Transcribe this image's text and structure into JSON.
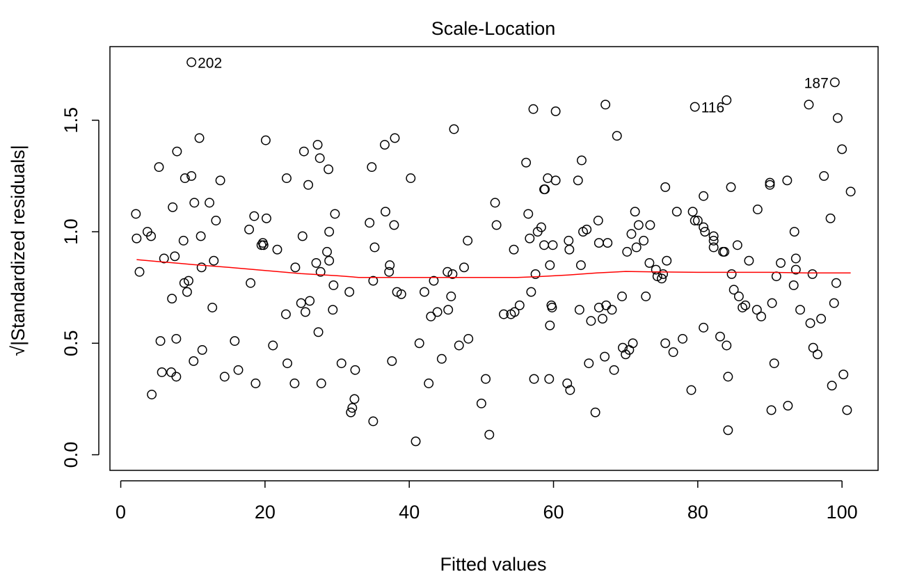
{
  "chart_data": {
    "type": "scatter",
    "title": "Scale-Location",
    "xlabel": "Fitted values",
    "ylabel": "√|Standardized residuals|",
    "xlim": [
      -1.5,
      105
    ],
    "ylim": [
      -0.07,
      1.83
    ],
    "xticks": [
      0,
      20,
      40,
      60,
      80,
      100
    ],
    "xtick_labels": [
      "0",
      "20",
      "40",
      "60",
      "80",
      "100"
    ],
    "yticks": [
      0.0,
      0.5,
      1.0,
      1.5
    ],
    "ytick_labels": [
      "0.0",
      "0.5",
      "1.0",
      "1.5"
    ],
    "grid": false,
    "colors": {
      "points": "#000000",
      "smoother": "#ff0000",
      "frame": "#000000"
    },
    "points": [
      [
        2.1,
        1.08
      ],
      [
        2.2,
        0.97
      ],
      [
        2.6,
        0.82
      ],
      [
        3.7,
        1.0
      ],
      [
        4.2,
        0.98
      ],
      [
        4.3,
        0.27
      ],
      [
        5.3,
        1.29
      ],
      [
        5.5,
        0.51
      ],
      [
        5.7,
        0.37
      ],
      [
        6.0,
        0.88
      ],
      [
        7.0,
        0.37
      ],
      [
        7.1,
        0.7
      ],
      [
        7.2,
        1.11
      ],
      [
        7.5,
        0.89
      ],
      [
        7.7,
        0.52
      ],
      [
        7.7,
        0.35
      ],
      [
        7.8,
        1.36
      ],
      [
        8.7,
        0.96
      ],
      [
        8.8,
        0.77
      ],
      [
        8.9,
        1.24
      ],
      [
        9.2,
        0.73
      ],
      [
        9.4,
        0.78
      ],
      [
        9.8,
        1.25
      ],
      [
        9.8,
        1.76
      ],
      [
        10.1,
        0.42
      ],
      [
        10.2,
        1.13
      ],
      [
        10.9,
        1.42
      ],
      [
        11.1,
        0.98
      ],
      [
        11.2,
        0.84
      ],
      [
        11.3,
        0.47
      ],
      [
        12.3,
        1.13
      ],
      [
        12.7,
        0.66
      ],
      [
        12.9,
        0.87
      ],
      [
        13.2,
        1.05
      ],
      [
        13.8,
        1.23
      ],
      [
        14.4,
        0.35
      ],
      [
        15.8,
        0.51
      ],
      [
        16.3,
        0.38
      ],
      [
        17.8,
        1.01
      ],
      [
        18.0,
        0.77
      ],
      [
        18.5,
        1.07
      ],
      [
        18.7,
        0.32
      ],
      [
        19.5,
        0.94
      ],
      [
        19.7,
        0.95
      ],
      [
        19.8,
        0.94
      ],
      [
        20.1,
        1.41
      ],
      [
        20.2,
        1.06
      ],
      [
        21.1,
        0.49
      ],
      [
        21.7,
        0.92
      ],
      [
        23.0,
        1.24
      ],
      [
        23.1,
        0.41
      ],
      [
        22.9,
        0.63
      ],
      [
        24.1,
        0.32
      ],
      [
        24.2,
        0.84
      ],
      [
        25.0,
        0.68
      ],
      [
        25.2,
        0.98
      ],
      [
        25.4,
        1.36
      ],
      [
        25.6,
        0.64
      ],
      [
        26.0,
        1.21
      ],
      [
        26.2,
        0.69
      ],
      [
        27.1,
        0.86
      ],
      [
        27.3,
        1.39
      ],
      [
        27.4,
        0.55
      ],
      [
        27.6,
        1.33
      ],
      [
        27.7,
        0.82
      ],
      [
        27.8,
        0.32
      ],
      [
        28.6,
        0.91
      ],
      [
        28.8,
        1.28
      ],
      [
        28.9,
        0.87
      ],
      [
        28.9,
        1.0
      ],
      [
        29.4,
        0.65
      ],
      [
        29.5,
        0.76
      ],
      [
        29.7,
        1.08
      ],
      [
        30.6,
        0.41
      ],
      [
        31.7,
        0.73
      ],
      [
        31.9,
        0.19
      ],
      [
        32.1,
        0.21
      ],
      [
        32.4,
        0.25
      ],
      [
        32.5,
        0.38
      ],
      [
        34.5,
        1.04
      ],
      [
        34.8,
        1.29
      ],
      [
        35.0,
        0.78
      ],
      [
        35.0,
        0.15
      ],
      [
        35.2,
        0.93
      ],
      [
        36.6,
        1.39
      ],
      [
        36.7,
        1.09
      ],
      [
        37.2,
        0.82
      ],
      [
        37.3,
        0.85
      ],
      [
        37.6,
        0.42
      ],
      [
        37.9,
        1.03
      ],
      [
        38.0,
        1.42
      ],
      [
        38.3,
        0.73
      ],
      [
        38.9,
        0.72
      ],
      [
        40.2,
        1.24
      ],
      [
        40.9,
        0.06
      ],
      [
        41.4,
        0.5
      ],
      [
        42.1,
        0.73
      ],
      [
        42.7,
        0.32
      ],
      [
        43.0,
        0.62
      ],
      [
        43.4,
        0.78
      ],
      [
        43.9,
        0.64
      ],
      [
        44.5,
        0.43
      ],
      [
        45.3,
        0.82
      ],
      [
        45.4,
        0.65
      ],
      [
        45.8,
        0.71
      ],
      [
        46.0,
        0.81
      ],
      [
        46.2,
        1.46
      ],
      [
        46.9,
        0.49
      ],
      [
        47.6,
        0.84
      ],
      [
        48.1,
        0.96
      ],
      [
        48.2,
        0.52
      ],
      [
        50.0,
        0.23
      ],
      [
        50.6,
        0.34
      ],
      [
        51.1,
        0.09
      ],
      [
        51.9,
        1.13
      ],
      [
        52.1,
        1.03
      ],
      [
        53.1,
        0.63
      ],
      [
        54.1,
        0.63
      ],
      [
        54.5,
        0.92
      ],
      [
        54.6,
        0.64
      ],
      [
        55.3,
        0.67
      ],
      [
        56.2,
        1.31
      ],
      [
        56.5,
        1.08
      ],
      [
        56.7,
        0.97
      ],
      [
        56.9,
        0.73
      ],
      [
        57.2,
        1.55
      ],
      [
        57.3,
        0.34
      ],
      [
        57.5,
        0.81
      ],
      [
        57.8,
        1.0
      ],
      [
        58.3,
        1.02
      ],
      [
        58.7,
        0.94
      ],
      [
        58.7,
        1.19
      ],
      [
        58.8,
        1.19
      ],
      [
        59.2,
        1.24
      ],
      [
        59.4,
        0.34
      ],
      [
        59.5,
        0.85
      ],
      [
        59.5,
        0.58
      ],
      [
        59.7,
        0.67
      ],
      [
        59.8,
        0.66
      ],
      [
        59.9,
        0.94
      ],
      [
        60.3,
        1.23
      ],
      [
        60.3,
        1.54
      ],
      [
        61.9,
        0.32
      ],
      [
        62.1,
        0.96
      ],
      [
        62.3,
        0.29
      ],
      [
        62.2,
        0.92
      ],
      [
        63.4,
        1.23
      ],
      [
        63.6,
        0.65
      ],
      [
        63.8,
        0.85
      ],
      [
        63.9,
        1.32
      ],
      [
        64.1,
        1.0
      ],
      [
        64.6,
        1.01
      ],
      [
        64.9,
        0.41
      ],
      [
        65.2,
        0.6
      ],
      [
        65.8,
        0.19
      ],
      [
        66.2,
        1.05
      ],
      [
        66.3,
        0.66
      ],
      [
        66.3,
        0.95
      ],
      [
        66.8,
        0.61
      ],
      [
        67.1,
        0.44
      ],
      [
        67.2,
        1.57
      ],
      [
        67.3,
        0.67
      ],
      [
        67.5,
        0.95
      ],
      [
        68.1,
        0.65
      ],
      [
        68.4,
        0.38
      ],
      [
        68.8,
        1.43
      ],
      [
        69.5,
        0.71
      ],
      [
        69.6,
        0.48
      ],
      [
        70.0,
        0.45
      ],
      [
        70.2,
        0.91
      ],
      [
        70.5,
        0.47
      ],
      [
        70.8,
        0.99
      ],
      [
        71.0,
        0.5
      ],
      [
        71.3,
        1.09
      ],
      [
        71.5,
        0.93
      ],
      [
        71.8,
        1.03
      ],
      [
        72.5,
        0.96
      ],
      [
        72.8,
        0.71
      ],
      [
        73.3,
        0.86
      ],
      [
        73.4,
        1.03
      ],
      [
        74.2,
        0.83
      ],
      [
        74.4,
        0.8
      ],
      [
        75.0,
        0.79
      ],
      [
        75.2,
        0.81
      ],
      [
        75.5,
        1.2
      ],
      [
        75.5,
        0.5
      ],
      [
        75.7,
        0.87
      ],
      [
        76.6,
        0.46
      ],
      [
        77.1,
        1.09
      ],
      [
        77.9,
        0.52
      ],
      [
        79.1,
        0.29
      ],
      [
        79.3,
        1.09
      ],
      [
        79.6,
        1.56
      ],
      [
        79.6,
        1.05
      ],
      [
        80.0,
        1.05
      ],
      [
        80.8,
        0.57
      ],
      [
        80.8,
        1.02
      ],
      [
        80.8,
        1.16
      ],
      [
        81.0,
        1.0
      ],
      [
        82.2,
        0.98
      ],
      [
        82.2,
        0.96
      ],
      [
        82.2,
        0.93
      ],
      [
        83.1,
        0.53
      ],
      [
        83.5,
        0.91
      ],
      [
        83.7,
        0.91
      ],
      [
        84.0,
        1.59
      ],
      [
        84.0,
        0.49
      ],
      [
        84.2,
        0.11
      ],
      [
        84.2,
        0.35
      ],
      [
        84.6,
        1.2
      ],
      [
        84.7,
        0.81
      ],
      [
        85.0,
        0.74
      ],
      [
        85.5,
        0.94
      ],
      [
        85.7,
        0.71
      ],
      [
        86.2,
        0.66
      ],
      [
        86.6,
        0.67
      ],
      [
        87.1,
        0.87
      ],
      [
        88.2,
        0.65
      ],
      [
        88.3,
        1.1
      ],
      [
        88.8,
        0.62
      ],
      [
        90.0,
        1.22
      ],
      [
        90.0,
        1.21
      ],
      [
        90.2,
        0.2
      ],
      [
        90.3,
        0.68
      ],
      [
        90.6,
        0.41
      ],
      [
        90.9,
        0.8
      ],
      [
        91.5,
        0.86
      ],
      [
        92.4,
        1.23
      ],
      [
        92.5,
        0.22
      ],
      [
        93.3,
        0.76
      ],
      [
        93.4,
        1.0
      ],
      [
        93.6,
        0.88
      ],
      [
        93.6,
        0.83
      ],
      [
        94.2,
        0.65
      ],
      [
        95.4,
        1.57
      ],
      [
        95.6,
        0.59
      ],
      [
        95.9,
        0.81
      ],
      [
        96.0,
        0.48
      ],
      [
        96.6,
        0.45
      ],
      [
        97.1,
        0.61
      ],
      [
        97.5,
        1.25
      ],
      [
        98.4,
        1.06
      ],
      [
        98.6,
        0.31
      ],
      [
        98.9,
        0.68
      ],
      [
        99.0,
        1.67
      ],
      [
        99.2,
        0.77
      ],
      [
        99.4,
        1.51
      ],
      [
        100.0,
        1.37
      ],
      [
        100.2,
        0.36
      ],
      [
        100.7,
        0.2
      ],
      [
        101.2,
        1.18
      ]
    ],
    "smoother": [
      [
        2.2,
        0.875
      ],
      [
        5,
        0.867
      ],
      [
        10,
        0.853
      ],
      [
        15,
        0.84
      ],
      [
        20,
        0.826
      ],
      [
        25,
        0.812
      ],
      [
        30,
        0.803
      ],
      [
        33,
        0.795
      ],
      [
        40,
        0.795
      ],
      [
        45,
        0.795
      ],
      [
        50,
        0.795
      ],
      [
        55,
        0.795
      ],
      [
        58,
        0.799
      ],
      [
        62,
        0.806
      ],
      [
        66,
        0.815
      ],
      [
        70,
        0.822
      ],
      [
        74,
        0.82
      ],
      [
        80,
        0.818
      ],
      [
        85,
        0.818
      ],
      [
        90,
        0.818
      ],
      [
        95,
        0.815
      ],
      [
        101.2,
        0.815
      ]
    ],
    "annotations": [
      {
        "text": "202",
        "x": 9.8,
        "y": 1.76,
        "side": "right"
      },
      {
        "text": "116",
        "x": 79.6,
        "y": 1.56,
        "side": "right"
      },
      {
        "text": "187",
        "x": 99.0,
        "y": 1.67,
        "side": "left"
      }
    ]
  }
}
